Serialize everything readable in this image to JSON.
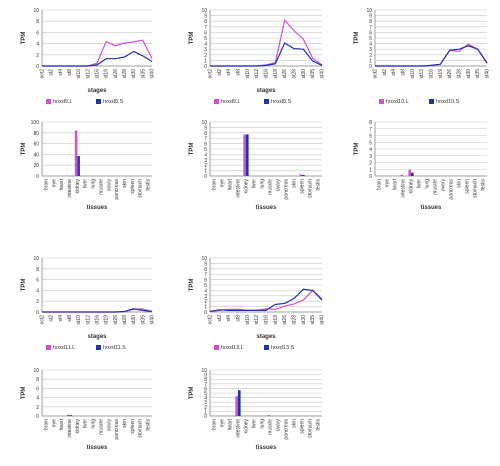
{
  "chart_data": [
    {
      "type": "line",
      "ylabel": "TPM",
      "xlabel": "stages",
      "ylim": [
        0,
        10
      ],
      "yticks": [
        0,
        2,
        4,
        6,
        8,
        10
      ],
      "categories": [
        "oct2",
        "st2",
        "st4",
        "st8",
        "st10",
        "st12",
        "st16",
        "st19",
        "st26",
        "st28",
        "st30",
        "st35",
        "st40"
      ],
      "series": [
        {
          "name": "hoxd9.L",
          "color": "#cc55cc",
          "values": [
            0,
            0,
            0,
            0,
            0,
            0,
            0.5,
            4.4,
            3.6,
            4.1,
            4.3,
            4.6,
            1.3
          ]
        },
        {
          "name": "hoxd9.S",
          "color": "#2233aa",
          "values": [
            0,
            0,
            0,
            0,
            0,
            0,
            0.2,
            1.3,
            1.3,
            1.6,
            2.6,
            1.8,
            0.8
          ]
        }
      ],
      "legend": "bottom"
    },
    {
      "type": "line",
      "ylabel": "TPM",
      "xlabel": "stages",
      "ylim": [
        0,
        10
      ],
      "yticks": [
        0,
        1,
        2,
        3,
        4,
        5,
        6,
        7,
        8,
        9,
        10
      ],
      "categories": [
        "oct2",
        "st2",
        "st4",
        "st8",
        "st10",
        "st12",
        "st16",
        "st19",
        "st26",
        "st28",
        "st30",
        "st35",
        "st40"
      ],
      "series": [
        {
          "name": "hoxd9.L",
          "color": "#cc55cc",
          "values": [
            0,
            0,
            0,
            0,
            0,
            0,
            0.2,
            0.6,
            8.2,
            6.3,
            4.8,
            1.4,
            0.2
          ]
        },
        {
          "name": "hoxd9.S",
          "color": "#2233aa",
          "values": [
            0,
            0,
            0,
            0,
            0,
            0,
            0.1,
            0.4,
            4.1,
            3.1,
            3.0,
            0.9,
            0.1
          ]
        }
      ],
      "legend": "bottom"
    },
    {
      "type": "line",
      "ylabel": "TPM",
      "xlabel": "",
      "ylim": [
        0,
        10
      ],
      "yticks": [
        0,
        1,
        2,
        3,
        4,
        5,
        6,
        7,
        8,
        9,
        10
      ],
      "categories": [
        "oct2",
        "st2",
        "st4",
        "st8",
        "st10",
        "st12",
        "st16",
        "st19",
        "st26",
        "st28",
        "st30",
        "st35",
        "st40"
      ],
      "series": [
        {
          "name": "hoxd10.L",
          "color": "#cc55cc",
          "values": [
            0,
            0,
            0,
            0,
            0,
            0,
            0.1,
            0.3,
            2.8,
            2.6,
            3.9,
            3.0,
            0.6
          ]
        },
        {
          "name": "hoxd10.S",
          "color": "#2233aa",
          "values": [
            0,
            0,
            0,
            0,
            0,
            0,
            0.1,
            0.3,
            2.8,
            3.0,
            3.6,
            3.0,
            0.5
          ]
        }
      ],
      "legend": "bottom"
    },
    {
      "type": "bar",
      "ylabel": "TPM",
      "xlabel": "tissues",
      "ylim": [
        0,
        100
      ],
      "yticks": [
        0,
        20,
        40,
        60,
        80,
        100
      ],
      "categories": [
        "brain",
        "eye",
        "heart",
        "intestine",
        "kidney",
        "liver",
        "lung",
        "muscle",
        "ovary",
        "pancreas",
        "skin",
        "spleen",
        "stomach",
        "testis"
      ],
      "series": [
        {
          "name": "hoxd9.L",
          "color": "#cc55cc",
          "values": [
            0,
            0,
            0,
            1,
            84,
            0,
            0,
            0,
            0,
            0,
            0,
            0,
            0,
            0
          ]
        },
        {
          "name": "hoxd9.S",
          "color": "#2233aa",
          "values": [
            0,
            0,
            0,
            0,
            37,
            0,
            0,
            0,
            0,
            0,
            0,
            0,
            0,
            0
          ]
        }
      ]
    },
    {
      "type": "bar",
      "ylabel": "TPM",
      "xlabel": "tissues",
      "ylim": [
        0,
        10
      ],
      "yticks": [
        0,
        1,
        2,
        3,
        4,
        5,
        6,
        7,
        8,
        9,
        10
      ],
      "categories": [
        "brain",
        "eye",
        "heart",
        "intestine",
        "kidney",
        "liver",
        "lung",
        "muscle",
        "ovary",
        "pancreas",
        "skin",
        "spleen",
        "stomach",
        "testis"
      ],
      "series": [
        {
          "name": "hoxd10.L",
          "color": "#cc55cc",
          "values": [
            0,
            0,
            0,
            0.1,
            7.7,
            0,
            0,
            0,
            0,
            0,
            0,
            0.3,
            0,
            0
          ]
        },
        {
          "name": "hoxd10.S",
          "color": "#2233aa",
          "values": [
            0,
            0,
            0,
            0,
            7.7,
            0,
            0,
            0,
            0,
            0,
            0,
            0.2,
            0,
            0
          ]
        }
      ]
    },
    {
      "type": "bar",
      "ylabel": "TPM",
      "xlabel": "tissues",
      "ylim": [
        0,
        8
      ],
      "yticks": [
        0,
        1,
        2,
        3,
        4,
        5,
        6,
        7,
        8
      ],
      "categories": [
        "brain",
        "eye",
        "heart",
        "intestine",
        "kidney",
        "liver",
        "lung",
        "muscle",
        "ovary",
        "pancreas",
        "skin",
        "spleen",
        "stomach",
        "testis"
      ],
      "series": [
        {
          "name": "hoxd11.L",
          "color": "#cc55cc",
          "values": [
            0,
            0,
            0,
            0.2,
            0.9,
            0,
            0,
            0,
            0,
            0,
            0,
            0,
            0,
            0
          ]
        },
        {
          "name": "hoxd11.S",
          "color": "#2233aa",
          "values": [
            0,
            0,
            0,
            0,
            0.5,
            0,
            0,
            0,
            0,
            0,
            0,
            0,
            0,
            0
          ]
        }
      ]
    },
    {
      "type": "line",
      "ylabel": "TPM",
      "xlabel": "stages",
      "ylim": [
        0,
        10
      ],
      "yticks": [
        0,
        2,
        4,
        6,
        8,
        10
      ],
      "categories": [
        "oct2",
        "st2",
        "st4",
        "st8",
        "st10",
        "st12",
        "st16",
        "st19",
        "st26",
        "st28",
        "st30",
        "st35",
        "st40"
      ],
      "series": [
        {
          "name": "hoxd11.L",
          "color": "#cc55cc",
          "values": [
            0,
            0,
            0,
            0,
            0,
            0,
            0,
            0,
            0,
            0.1,
            0.5,
            0.6,
            0.1
          ]
        },
        {
          "name": "hoxd11.S",
          "color": "#2233aa",
          "values": [
            0,
            0,
            0,
            0,
            0,
            0,
            0,
            0,
            0,
            0.1,
            0.6,
            0.3,
            0.1
          ]
        }
      ],
      "legend": "bottom"
    },
    {
      "type": "line",
      "ylabel": "TPM",
      "xlabel": "stages",
      "ylim": [
        0,
        10
      ],
      "yticks": [
        0,
        1,
        2,
        3,
        4,
        5,
        6,
        7,
        8,
        9,
        10
      ],
      "categories": [
        "oct2",
        "st2",
        "st4",
        "st8",
        "st10",
        "st12",
        "st16",
        "st19",
        "st26",
        "st28",
        "st30",
        "st35",
        "st40"
      ],
      "series": [
        {
          "name": "hoxd13.L",
          "color": "#cc55cc",
          "values": [
            0.1,
            0.3,
            0.5,
            0.5,
            0.3,
            0.3,
            0.6,
            0.5,
            1.1,
            1.5,
            2.2,
            4.0,
            2.4
          ]
        },
        {
          "name": "hoxd13.S",
          "color": "#2233aa",
          "values": [
            0.1,
            0.4,
            0.3,
            0.3,
            0.3,
            0.3,
            0.3,
            1.4,
            1.6,
            2.5,
            4.2,
            4.0,
            2.2
          ]
        }
      ],
      "legend": "bottom"
    },
    {
      "type": "bar",
      "ylabel": "TPM",
      "xlabel": "tissues",
      "ylim": [
        0,
        10
      ],
      "yticks": [
        0,
        2,
        4,
        6,
        8,
        10
      ],
      "categories": [
        "brain",
        "eye",
        "heart",
        "intestine",
        "kidney",
        "liver",
        "lung",
        "muscle",
        "ovary",
        "pancreas",
        "skin",
        "spleen",
        "stomach",
        "testis"
      ],
      "series": [
        {
          "name": "hoxd11.L",
          "color": "#cc55cc",
          "values": [
            0,
            0,
            0,
            0.3,
            0,
            0,
            0,
            0,
            0,
            0,
            0,
            0,
            0,
            0
          ]
        },
        {
          "name": "hoxd11.S",
          "color": "#2233aa",
          "values": [
            0,
            0,
            0,
            0.2,
            0,
            0,
            0,
            0,
            0,
            0,
            0,
            0,
            0,
            0
          ]
        }
      ]
    },
    {
      "type": "bar",
      "ylabel": "TPM",
      "xlabel": "tissues",
      "ylim": [
        0,
        10
      ],
      "yticks": [
        0,
        1,
        2,
        3,
        4,
        5,
        6,
        7,
        8,
        9,
        10
      ],
      "categories": [
        "brain",
        "eye",
        "heart",
        "intestine",
        "kidney",
        "liver",
        "lung",
        "muscle",
        "ovary",
        "pancreas",
        "skin",
        "spleen",
        "stomach",
        "testis"
      ],
      "series": [
        {
          "name": "hoxd13.L",
          "color": "#cc55cc",
          "values": [
            0,
            0,
            0,
            4.3,
            0,
            0,
            0,
            0.2,
            0,
            0,
            0,
            0,
            0,
            0
          ]
        },
        {
          "name": "hoxd13.S",
          "color": "#2233aa",
          "values": [
            0,
            0,
            0,
            5.6,
            0,
            0,
            0,
            0,
            0,
            0,
            0,
            0,
            0,
            0
          ]
        }
      ]
    }
  ]
}
